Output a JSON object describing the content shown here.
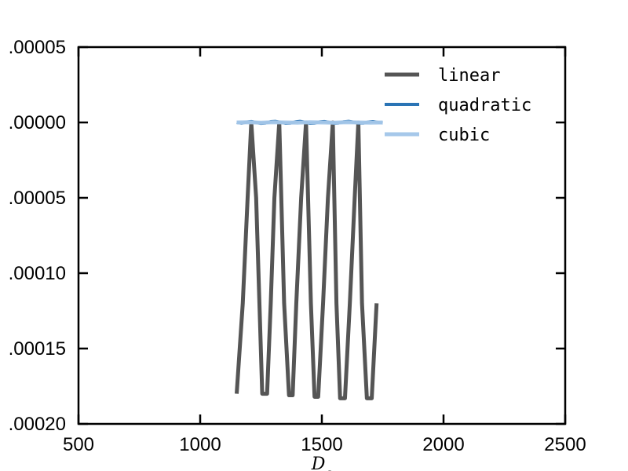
{
  "chart_data": {
    "type": "line",
    "title": "",
    "xlabel": "D_c",
    "ylabel": "",
    "xlim": [
      500,
      2500
    ],
    "ylim": [
      -0.0002,
      5e-05
    ],
    "x_ticks": [
      500,
      1000,
      1500,
      2000,
      2500
    ],
    "x_tick_labels": [
      "500",
      "1000",
      "1500",
      "2000",
      "2500"
    ],
    "y_ticks": [
      5e-05,
      0.0,
      -5e-05,
      -0.0001,
      -0.00015,
      -0.0002
    ],
    "y_tick_labels": [
      ".00005",
      ".00000",
      ".00005",
      ".00010",
      ".00015",
      ".00020"
    ],
    "grid": false,
    "legend_position": "top-right",
    "series": [
      {
        "name": "linear",
        "color": "#555555",
        "x": [
          1150,
          1175,
          1195,
          1210,
          1230,
          1255,
          1275,
          1290,
          1305,
          1325,
          1345,
          1365,
          1380,
          1395,
          1415,
          1435,
          1455,
          1470,
          1485,
          1505,
          1525,
          1545,
          1560,
          1575,
          1595,
          1615,
          1635,
          1650,
          1665,
          1685,
          1705,
          1725
        ],
        "y": [
          -0.00018,
          -0.00012,
          -5e-05,
          0.0,
          -5e-05,
          -0.00018,
          -0.00018,
          -0.00012,
          -5e-05,
          0.0,
          -0.00012,
          -0.000181,
          -0.000181,
          -0.00012,
          -5e-05,
          0.0,
          -0.00012,
          -0.000182,
          -0.000182,
          -0.00012,
          -5e-05,
          0.0,
          -0.00012,
          -0.000183,
          -0.000183,
          -0.00012,
          -5e-05,
          0.0,
          -0.00012,
          -0.000183,
          -0.000183,
          -0.00012
        ]
      },
      {
        "name": "quadratic",
        "color": "#2a74b5",
        "x": [
          1150,
          1170,
          1190,
          1210,
          1230,
          1250,
          1270,
          1290,
          1310,
          1330,
          1350,
          1370,
          1390,
          1410,
          1430,
          1450,
          1470,
          1490,
          1510,
          1530,
          1550,
          1570,
          1590,
          1610,
          1630,
          1650,
          1670,
          1690,
          1710,
          1730,
          1750
        ],
        "y": [
          0.0,
          -4e-07,
          2e-07,
          6e-07,
          0.0,
          -6e-07,
          -3e-07,
          5e-07,
          7e-07,
          1e-07,
          -5e-07,
          -4e-07,
          3e-07,
          7e-07,
          2e-07,
          -5e-07,
          -4e-07,
          3e-07,
          6e-07,
          1e-07,
          -5e-07,
          -3e-07,
          4e-07,
          7e-07,
          2e-07,
          -4e-07,
          -4e-07,
          2e-07,
          5e-07,
          1e-07,
          -3e-07
        ]
      },
      {
        "name": "cubic",
        "color": "#a6c8ea",
        "x": [
          1150,
          1200,
          1250,
          1300,
          1350,
          1400,
          1450,
          1500,
          1550,
          1600,
          1650,
          1700,
          1750
        ],
        "y": [
          0.0,
          1e-07,
          -1e-07,
          1e-07,
          0.0,
          -1e-07,
          1e-07,
          0.0,
          -1e-07,
          1e-07,
          0.0,
          -1e-07,
          0.0
        ]
      }
    ]
  }
}
